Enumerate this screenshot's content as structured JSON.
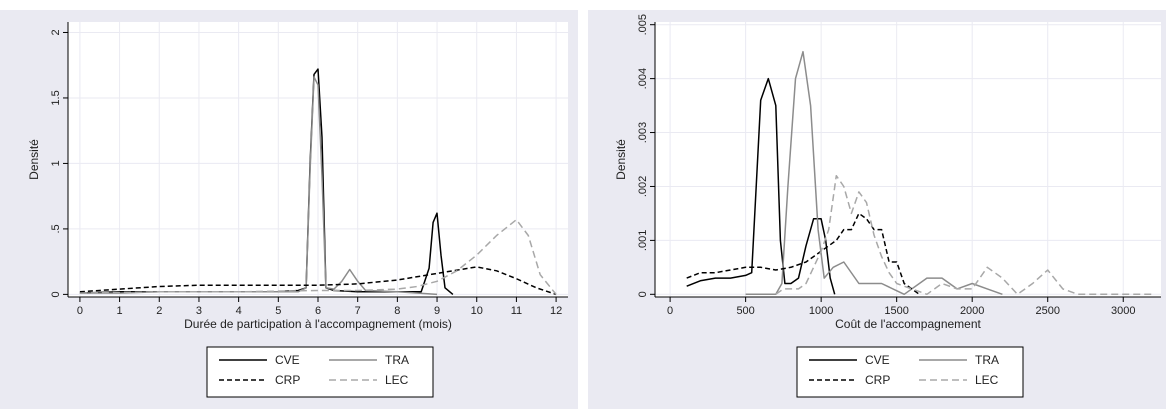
{
  "colors": {
    "panel_bg": "#eaeaf2",
    "plot_bg": "#ffffff",
    "grid": "#eaeaf2",
    "black": "#000000",
    "gray": "#8c8c8c",
    "light_gray": "#a8a8a8"
  },
  "chart_data": [
    {
      "type": "line",
      "xlabel": "Durée de participation à l'accompagnement (mois)",
      "ylabel": "Densité",
      "xlim": [
        -0.3,
        12.3
      ],
      "ylim": [
        -0.02,
        2.08
      ],
      "xticks": [
        0,
        1,
        2,
        3,
        4,
        5,
        6,
        7,
        8,
        9,
        10,
        11,
        12
      ],
      "xtick_labels": [
        "0",
        "1",
        "2",
        "3",
        "4",
        "5",
        "6",
        "7",
        "8",
        "9",
        "10",
        "11",
        "12"
      ],
      "yticks": [
        0,
        0.5,
        1,
        1.5,
        2
      ],
      "ytick_labels": [
        "0",
        ".5",
        "1",
        "1.5",
        "2"
      ],
      "grid": true,
      "legend": {
        "placement": "bottom",
        "entries": [
          "CVE",
          "TRA",
          "CRP",
          "LEC"
        ]
      },
      "series": [
        {
          "name": "CVE",
          "style": "solid",
          "color": "black",
          "x": [
            0,
            1,
            2,
            3,
            4,
            5,
            5.5,
            5.7,
            5.8,
            5.9,
            6.0,
            6.1,
            6.2,
            6.4,
            7,
            8,
            8.6,
            8.8,
            8.9,
            9.0,
            9.1,
            9.2,
            9.4
          ],
          "y": [
            0.01,
            0.02,
            0.02,
            0.02,
            0.02,
            0.02,
            0.03,
            0.05,
            1.0,
            1.68,
            1.72,
            1.2,
            0.05,
            0.03,
            0.02,
            0.02,
            0.02,
            0.2,
            0.55,
            0.62,
            0.3,
            0.05,
            0.0
          ]
        },
        {
          "name": "TRA",
          "style": "solid",
          "color": "gray",
          "x": [
            0,
            1,
            2,
            3,
            4,
            5,
            5.5,
            5.7,
            5.8,
            5.9,
            6.0,
            6.1,
            6.2,
            6.4,
            6.6,
            6.8,
            7.0,
            7.2,
            8,
            9
          ],
          "y": [
            0.01,
            0.01,
            0.02,
            0.02,
            0.02,
            0.02,
            0.02,
            0.05,
            0.95,
            1.66,
            1.6,
            0.9,
            0.05,
            0.04,
            0.1,
            0.19,
            0.1,
            0.03,
            0.02,
            0.0
          ]
        },
        {
          "name": "CRP",
          "style": "dash",
          "color": "black",
          "x": [
            0,
            1,
            2,
            3,
            4,
            5,
            6,
            7,
            8,
            9,
            10,
            10.5,
            11,
            11.5,
            12
          ],
          "y": [
            0.02,
            0.04,
            0.06,
            0.07,
            0.07,
            0.07,
            0.07,
            0.08,
            0.11,
            0.16,
            0.21,
            0.18,
            0.12,
            0.05,
            0.0
          ]
        },
        {
          "name": "LEC",
          "style": "dash",
          "color": "light_gray",
          "x": [
            0,
            2,
            4,
            6,
            7,
            8,
            8.5,
            9,
            9.5,
            10,
            10.5,
            11,
            11.3,
            11.6,
            12
          ],
          "y": [
            0.01,
            0.02,
            0.02,
            0.03,
            0.03,
            0.04,
            0.06,
            0.1,
            0.18,
            0.3,
            0.45,
            0.57,
            0.45,
            0.15,
            0.0
          ]
        }
      ]
    },
    {
      "type": "line",
      "xlabel": "Coût de l'accompagnement",
      "ylabel": "Densité",
      "xlim": [
        -100,
        3250
      ],
      "ylim": [
        -5e-05,
        0.00505
      ],
      "xticks": [
        0,
        500,
        1000,
        1500,
        2000,
        2500,
        3000
      ],
      "xtick_labels": [
        "0",
        "500",
        "1000",
        "1500",
        "2000",
        "2500",
        "3000"
      ],
      "yticks": [
        0,
        0.001,
        0.002,
        0.003,
        0.004,
        0.005
      ],
      "ytick_labels": [
        "0",
        ".001",
        ".002",
        ".003",
        ".004",
        ".005"
      ],
      "grid": true,
      "legend": {
        "placement": "bottom",
        "entries": [
          "CVE",
          "TRA",
          "CRP",
          "LEC"
        ]
      },
      "series": [
        {
          "name": "CVE",
          "style": "solid",
          "color": "black",
          "x": [
            110,
            200,
            300,
            400,
            500,
            540,
            570,
            600,
            650,
            700,
            730,
            760,
            800,
            850,
            900,
            950,
            1000,
            1030,
            1060,
            1090
          ],
          "y": [
            0.00015,
            0.00025,
            0.0003,
            0.0003,
            0.00035,
            0.0004,
            0.002,
            0.0036,
            0.004,
            0.0035,
            0.001,
            0.0002,
            0.0002,
            0.0003,
            0.0009,
            0.0014,
            0.0014,
            0.001,
            0.0003,
            0.0
          ]
        },
        {
          "name": "TRA",
          "style": "solid",
          "color": "gray",
          "x": [
            500,
            700,
            740,
            780,
            830,
            880,
            930,
            980,
            1020,
            1080,
            1150,
            1250,
            1400,
            1550,
            1700,
            1800,
            1900,
            2000,
            2100,
            2200
          ],
          "y": [
            0.0,
            0.0,
            0.0002,
            0.002,
            0.004,
            0.0045,
            0.0035,
            0.0012,
            0.0003,
            0.0005,
            0.0006,
            0.0002,
            0.0002,
            0.0,
            0.0003,
            0.0003,
            0.0001,
            0.0002,
            0.0001,
            0.0
          ]
        },
        {
          "name": "CRP",
          "style": "dash",
          "color": "black",
          "x": [
            110,
            200,
            300,
            400,
            500,
            600,
            700,
            800,
            900,
            1000,
            1100,
            1150,
            1200,
            1250,
            1300,
            1350,
            1400,
            1450,
            1500,
            1550,
            1600,
            1650
          ],
          "y": [
            0.0003,
            0.0004,
            0.0004,
            0.00045,
            0.0005,
            0.0005,
            0.00045,
            0.0005,
            0.0006,
            0.0008,
            0.001,
            0.0012,
            0.0012,
            0.0015,
            0.0014,
            0.0012,
            0.0012,
            0.0006,
            0.0006,
            0.0002,
            0.0001,
            0.0
          ]
        },
        {
          "name": "LEC",
          "style": "dash",
          "color": "light_gray",
          "x": [
            700,
            750,
            800,
            850,
            900,
            950,
            1000,
            1050,
            1100,
            1150,
            1200,
            1250,
            1300,
            1350,
            1400,
            1450,
            1500,
            1600,
            1700,
            1800,
            1900,
            2000,
            2100,
            2200,
            2300,
            2400,
            2500,
            2600,
            2700,
            2800,
            3200
          ],
          "y": [
            0.0,
            0.0001,
            0.0001,
            0.0001,
            0.0002,
            0.0005,
            0.0008,
            0.0012,
            0.0022,
            0.002,
            0.0015,
            0.0019,
            0.0017,
            0.0011,
            0.0007,
            0.0004,
            0.0002,
            0.0001,
            0.0,
            0.0002,
            0.0001,
            0.0001,
            0.0005,
            0.0003,
            0.0,
            0.0002,
            0.00045,
            0.0001,
            0.0,
            0.0,
            0.0
          ]
        }
      ]
    }
  ]
}
